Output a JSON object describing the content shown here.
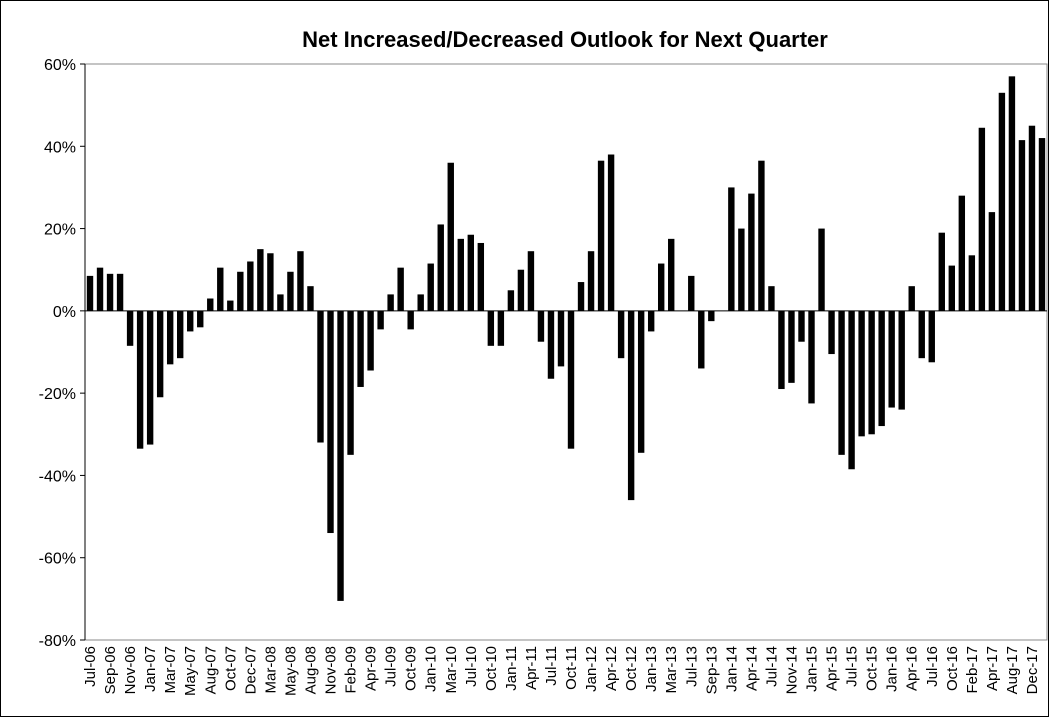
{
  "chart_data": {
    "type": "bar",
    "title": "Net Increased/Decreased Outlook for Next Quarter",
    "categories": [
      "Jul-06",
      null,
      "Sep-06",
      null,
      "Nov-06",
      null,
      "Jan-07",
      null,
      "Mar-07",
      null,
      "May-07",
      null,
      "Aug-07",
      null,
      "Oct-07",
      null,
      "Dec-07",
      null,
      "Mar-08",
      null,
      "May-08",
      null,
      "Aug-08",
      null,
      "Nov-08",
      null,
      "Feb-09",
      null,
      "Apr-09",
      null,
      "Jul-09",
      null,
      "Oct-09",
      null,
      "Jan-10",
      null,
      "Mar-10",
      null,
      "Jul-10",
      null,
      "Oct-10",
      null,
      "Jan-11",
      null,
      "Apr-11",
      null,
      "Jul-11",
      null,
      "Oct-11",
      null,
      "Jan-12",
      null,
      "Apr-12",
      null,
      "Oct-12",
      null,
      "Jan-13",
      null,
      "Mar-13",
      null,
      "Jul-13",
      null,
      "Sep-13",
      null,
      "Jan-14",
      null,
      "Apr-14",
      null,
      "Jul-14",
      null,
      "Nov-14",
      null,
      "Jan-15",
      null,
      "Apr-15",
      null,
      "Jul-15",
      null,
      "Oct-15",
      null,
      "Jan-16",
      null,
      "Apr-16",
      null,
      "Jul-16",
      null,
      "Oct-16",
      null,
      "Feb-17",
      null,
      "Apr-17",
      null,
      "Aug-17",
      null,
      "Dec-17",
      null
    ],
    "values": [
      8.5,
      10.5,
      9,
      9,
      -8.5,
      -33.5,
      -32.5,
      -21,
      -13,
      -11.5,
      -5,
      -4,
      3,
      10.5,
      2.5,
      9.5,
      12,
      15,
      14,
      4,
      9.5,
      14.5,
      6,
      -32,
      -54,
      -70.5,
      -35,
      -18.5,
      -14.5,
      -4.5,
      4,
      10.5,
      -4.5,
      4,
      11.5,
      21,
      36,
      17.5,
      18.5,
      16.5,
      -8.5,
      -8.5,
      5,
      10,
      14.5,
      -7.5,
      -16.5,
      -13.5,
      -33.5,
      7,
      14.5,
      36.5,
      38,
      -11.5,
      -46,
      -34.5,
      -5,
      11.5,
      17.5,
      0,
      8.5,
      -14,
      -2.5,
      0,
      30,
      20,
      28.5,
      36.5,
      6,
      -19,
      -17.5,
      -7.5,
      -22.5,
      20,
      -10.5,
      -35,
      -38.5,
      -30.5,
      -30,
      -28,
      -23.5,
      -24,
      6,
      -11.5,
      -12.5,
      19,
      11,
      28,
      13.5,
      44.5,
      24,
      53,
      57,
      41.5,
      45,
      42
    ],
    "color": "#000000",
    "ylim": [
      -80,
      60
    ],
    "yticks": [
      {
        "value": -80,
        "label": "-80%"
      },
      {
        "value": -60,
        "label": "-60%"
      },
      {
        "value": -40,
        "label": "-40%"
      },
      {
        "value": -20,
        "label": "-20%"
      },
      {
        "value": 0,
        "label": "0%"
      },
      {
        "value": 20,
        "label": "20%"
      },
      {
        "value": 40,
        "label": "40%"
      },
      {
        "value": 60,
        "label": "60%"
      }
    ],
    "grid": false
  }
}
